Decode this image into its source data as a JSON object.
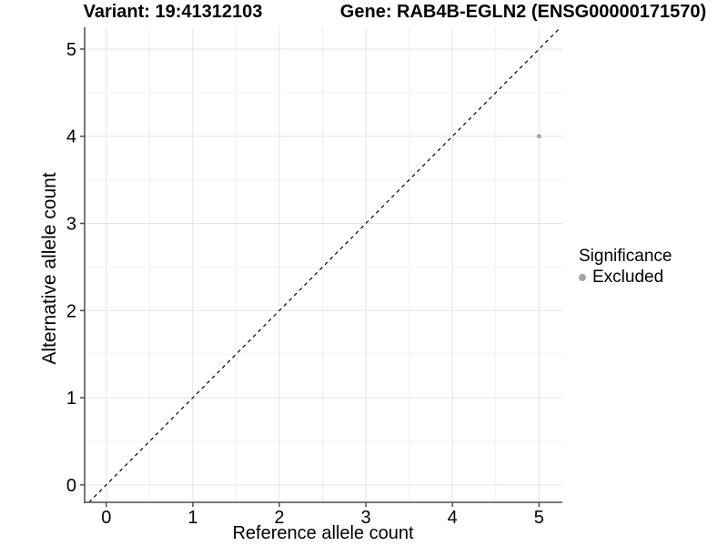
{
  "chart_data": {
    "type": "scatter",
    "title_left": "Variant: 19:41312103",
    "title_right": "Gene: RAB4B-EGLN2 (ENSG00000171570)",
    "xlabel": "Reference allele count",
    "ylabel": "Alternative allele count",
    "xlim": [
      -0.25,
      5.27
    ],
    "ylim": [
      -0.2,
      5.25
    ],
    "x_ticks": [
      0,
      1,
      2,
      3,
      4,
      5
    ],
    "y_ticks": [
      0,
      1,
      2,
      3,
      4,
      5
    ],
    "x_minor_ticks": [
      0.5,
      1.5,
      2.5,
      3.5,
      4.5
    ],
    "y_minor_ticks": [
      0.5,
      1.5,
      2.5,
      3.5,
      4.5
    ],
    "grid": true,
    "series": [
      {
        "name": "Excluded",
        "color": "#a5a5a5",
        "marker": "circle",
        "marker_radius": 2.5,
        "points": [
          {
            "x": 5,
            "y": 4
          }
        ]
      }
    ],
    "reference_line": {
      "equation": "y = x",
      "style": "dashed",
      "color": "#000000"
    },
    "legend": {
      "position": "right",
      "title": "Significance",
      "items": [
        {
          "label": "Excluded",
          "color": "#a5a5a5"
        }
      ]
    },
    "colors": {
      "background": "#ffffff",
      "grid_major": "#e4e4e4",
      "grid_minor": "#f0f0f0",
      "axis": "#4d4d4d",
      "tick_text": "#000000"
    }
  }
}
